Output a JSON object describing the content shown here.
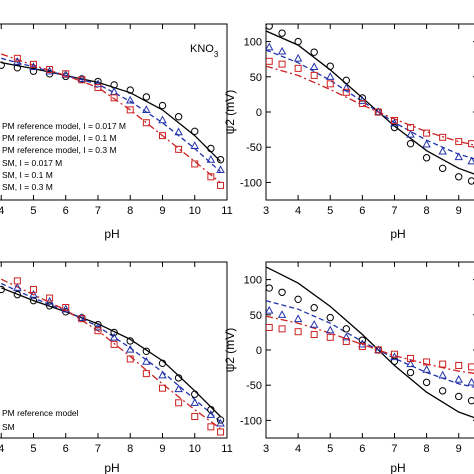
{
  "figure_label": "KNO3",
  "chart_data": [
    {
      "type": "line",
      "panel": "top-left",
      "xlabel": "pH",
      "ylabel": "",
      "xlim": [
        3.9,
        11
      ],
      "ylim": [
        -145,
        60
      ],
      "xticks": [
        4,
        5,
        6,
        7,
        8,
        9,
        10,
        11
      ],
      "yticks": [],
      "legend": [
        "PM reference model, I = 0.017 M",
        "PM reference model, I = 0.1 M",
        "PM reference model, I = 0.3 M",
        "SM, I = 0.017 M",
        "SM, I = 0.1 M",
        "SM, I = 0.3 M"
      ],
      "series": [
        {
          "style": "solid",
          "color": "#000000",
          "x": [
            4,
            5,
            6,
            7,
            8,
            9,
            10,
            10.8
          ],
          "y": [
            15,
            8,
            0,
            -8,
            -20,
            -40,
            -70,
            -100
          ]
        },
        {
          "style": "dash",
          "color": "#2233aa",
          "x": [
            4,
            5,
            6,
            7,
            8,
            9,
            10,
            10.8
          ],
          "y": [
            20,
            10,
            0,
            -10,
            -30,
            -55,
            -85,
            -112
          ]
        },
        {
          "style": "dashdot",
          "color": "#cc2222",
          "x": [
            4,
            5,
            6,
            7,
            8,
            9,
            10,
            10.8
          ],
          "y": [
            25,
            12,
            0,
            -14,
            -40,
            -70,
            -100,
            -125
          ]
        },
        {
          "style": "circle",
          "color": "#000000",
          "x": [
            4,
            4.5,
            5,
            5.5,
            6,
            6.5,
            7,
            7.5,
            8,
            8.5,
            9,
            9.5,
            10,
            10.5,
            10.8
          ],
          "y": [
            12,
            9,
            5,
            2,
            -1,
            -4,
            -7,
            -11,
            -17,
            -25,
            -35,
            -48,
            -65,
            -85,
            -98
          ]
        },
        {
          "style": "triangle",
          "color": "#2233aa",
          "x": [
            4.5,
            5,
            5.5,
            6,
            6.5,
            7,
            7.5,
            8,
            8.5,
            9,
            9.5,
            10,
            10.5,
            10.8
          ],
          "y": [
            16,
            10,
            5,
            1,
            -4,
            -10,
            -19,
            -29,
            -40,
            -52,
            -66,
            -82,
            -98,
            -110
          ]
        },
        {
          "style": "square",
          "color": "#cc2222",
          "x": [
            4.5,
            5,
            5.5,
            6,
            6.5,
            7,
            7.5,
            8,
            8.5,
            9,
            9.5,
            10,
            10.5,
            10.8
          ],
          "y": [
            20,
            13,
            7,
            2,
            -5,
            -14,
            -26,
            -40,
            -55,
            -70,
            -86,
            -103,
            -118,
            -128
          ]
        }
      ]
    },
    {
      "type": "line",
      "panel": "top-right",
      "xlabel": "pH",
      "ylabel": "ψ2 (mV)",
      "xlim": [
        3,
        9.6
      ],
      "ylim": [
        -125,
        125
      ],
      "xticks": [
        3,
        4,
        5,
        6,
        7,
        8,
        9
      ],
      "yticks": [
        100,
        50,
        0,
        -50,
        -100
      ],
      "series": [
        {
          "style": "solid",
          "color": "#000000",
          "x": [
            3,
            4,
            5,
            6,
            6.5,
            7,
            8,
            9,
            9.6
          ],
          "y": [
            115,
            95,
            60,
            20,
            0,
            -20,
            -55,
            -80,
            -90
          ]
        },
        {
          "style": "dash",
          "color": "#2233aa",
          "x": [
            3,
            4,
            5,
            6,
            6.5,
            7,
            8,
            9,
            9.6
          ],
          "y": [
            88,
            70,
            45,
            15,
            0,
            -15,
            -40,
            -60,
            -68
          ]
        },
        {
          "style": "dashdot",
          "color": "#cc2222",
          "x": [
            3,
            4,
            5,
            6,
            6.5,
            7,
            8,
            9,
            9.6
          ],
          "y": [
            65,
            52,
            32,
            10,
            0,
            -10,
            -28,
            -42,
            -48
          ]
        },
        {
          "style": "circle",
          "color": "#000000",
          "x": [
            3.1,
            3.5,
            4,
            4.5,
            5,
            5.5,
            6,
            6.5,
            7,
            7.5,
            8,
            8.5,
            9,
            9.4
          ],
          "y": [
            122,
            112,
            100,
            85,
            65,
            45,
            20,
            0,
            -22,
            -45,
            -65,
            -80,
            -92,
            -98
          ]
        },
        {
          "style": "triangle",
          "color": "#2233aa",
          "x": [
            3.1,
            3.5,
            4,
            4.5,
            5,
            5.5,
            6,
            6.5,
            7,
            7.5,
            8,
            8.5,
            9,
            9.4
          ],
          "y": [
            92,
            86,
            76,
            64,
            50,
            34,
            16,
            0,
            -16,
            -32,
            -46,
            -56,
            -64,
            -70
          ]
        },
        {
          "style": "square",
          "color": "#cc2222",
          "x": [
            3.1,
            3.5,
            4,
            4.5,
            5,
            5.5,
            6,
            6.5,
            7,
            7.5,
            8,
            8.5,
            9,
            9.4
          ],
          "y": [
            72,
            68,
            62,
            52,
            40,
            28,
            12,
            0,
            -12,
            -22,
            -30,
            -36,
            -42,
            -45
          ]
        }
      ]
    },
    {
      "type": "line",
      "panel": "bottom-left",
      "xlabel": "pH",
      "ylabel": "",
      "xlim": [
        3.9,
        11
      ],
      "ylim": [
        -145,
        60
      ],
      "xticks": [
        4,
        5,
        6,
        7,
        8,
        9,
        10,
        11
      ],
      "yticks": [],
      "legend": [
        "PM reference model",
        "SM"
      ],
      "series": [
        {
          "style": "solid",
          "color": "#000000",
          "x": [
            4,
            5,
            6,
            7,
            8,
            9,
            10,
            10.8
          ],
          "y": [
            30,
            15,
            2,
            -12,
            -30,
            -55,
            -90,
            -120
          ]
        },
        {
          "style": "dash",
          "color": "#2233aa",
          "x": [
            4,
            5,
            6,
            7,
            8,
            9,
            10,
            10.8
          ],
          "y": [
            35,
            18,
            3,
            -15,
            -40,
            -68,
            -100,
            -126
          ]
        },
        {
          "style": "dashdot",
          "color": "#cc2222",
          "x": [
            4,
            5,
            6,
            7,
            8,
            9,
            10,
            10.8
          ],
          "y": [
            40,
            22,
            4,
            -20,
            -50,
            -82,
            -112,
            -134
          ]
        },
        {
          "style": "circle",
          "color": "#000000",
          "x": [
            4,
            4.5,
            5,
            5.5,
            6,
            6.5,
            7,
            7.5,
            8,
            8.5,
            9,
            9.5,
            10,
            10.5,
            10.8
          ],
          "y": [
            28,
            22,
            15,
            9,
            2,
            -5,
            -13,
            -22,
            -32,
            -44,
            -58,
            -75,
            -94,
            -112,
            -124
          ]
        },
        {
          "style": "triangle",
          "color": "#2233aa",
          "x": [
            4.5,
            5,
            5.5,
            6,
            6.5,
            7,
            7.5,
            8,
            8.5,
            9,
            9.5,
            10,
            10.5,
            10.8
          ],
          "y": [
            30,
            22,
            14,
            5,
            -5,
            -16,
            -28,
            -42,
            -56,
            -72,
            -88,
            -104,
            -118,
            -128
          ]
        },
        {
          "style": "square",
          "color": "#cc2222",
          "x": [
            4.5,
            5,
            5.5,
            6,
            6.5,
            7,
            7.5,
            8,
            8.5,
            9,
            9.5,
            10,
            10.5,
            10.8
          ],
          "y": [
            38,
            28,
            18,
            7,
            -6,
            -20,
            -36,
            -53,
            -70,
            -87,
            -104,
            -120,
            -132,
            -138
          ]
        }
      ]
    },
    {
      "type": "line",
      "panel": "bottom-right",
      "xlabel": "pH",
      "ylabel": "ψ2 (mV)",
      "xlim": [
        3,
        9.6
      ],
      "ylim": [
        -125,
        125
      ],
      "xticks": [
        3,
        4,
        5,
        6,
        7,
        8,
        9
      ],
      "yticks": [
        100,
        50,
        0,
        -50,
        -100
      ],
      "series": [
        {
          "style": "solid",
          "color": "#000000",
          "x": [
            3,
            4,
            5,
            6,
            6.5,
            7,
            8,
            9,
            9.6
          ],
          "y": [
            118,
            95,
            62,
            22,
            0,
            -22,
            -60,
            -88,
            -98
          ]
        },
        {
          "style": "dash",
          "color": "#2233aa",
          "x": [
            3,
            4,
            5,
            6,
            6.5,
            7,
            8,
            9,
            9.6
          ],
          "y": [
            70,
            58,
            38,
            12,
            0,
            -12,
            -32,
            -48,
            -54
          ]
        },
        {
          "style": "dashdot",
          "color": "#cc2222",
          "x": [
            3,
            4,
            5,
            6,
            6.5,
            7,
            8,
            9,
            9.6
          ],
          "y": [
            48,
            38,
            24,
            8,
            0,
            -8,
            -20,
            -30,
            -34
          ]
        },
        {
          "style": "circle",
          "color": "#000000",
          "x": [
            3.1,
            3.5,
            4,
            4.5,
            5,
            5.5,
            6,
            6.5,
            7,
            7.5,
            8,
            8.5,
            9,
            9.4
          ],
          "y": [
            88,
            82,
            72,
            60,
            46,
            30,
            14,
            0,
            -16,
            -32,
            -46,
            -58,
            -66,
            -72
          ]
        },
        {
          "style": "triangle",
          "color": "#2233aa",
          "x": [
            3.1,
            3.5,
            4,
            4.5,
            5,
            5.5,
            6,
            6.5,
            7,
            7.5,
            8,
            8.5,
            9,
            9.4
          ],
          "y": [
            56,
            50,
            44,
            36,
            28,
            18,
            8,
            0,
            -10,
            -20,
            -28,
            -36,
            -42,
            -46
          ]
        },
        {
          "style": "square",
          "color": "#cc2222",
          "x": [
            3.1,
            3.5,
            4,
            4.5,
            5,
            5.5,
            6,
            6.5,
            7,
            7.5,
            8,
            8.5,
            9,
            9.4
          ],
          "y": [
            32,
            30,
            26,
            22,
            18,
            12,
            5,
            0,
            -6,
            -12,
            -17,
            -20,
            -22,
            -24
          ]
        }
      ]
    }
  ]
}
